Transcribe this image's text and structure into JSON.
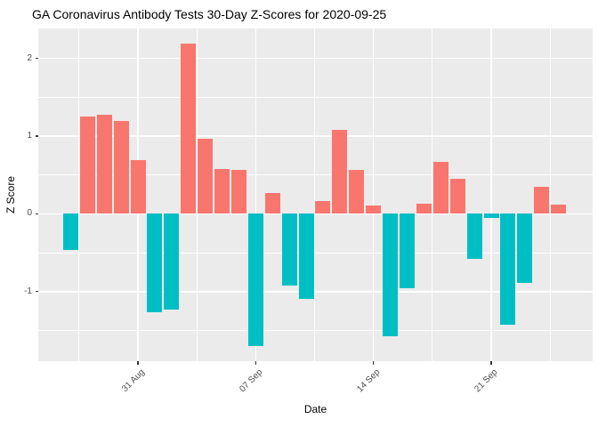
{
  "chart_data": {
    "type": "bar",
    "title": "GA Coronavirus Antibody Tests 30-Day Z-Scores for 2020-09-25",
    "xlabel": "Date",
    "ylabel": "Z Score",
    "dates": [
      "2020-08-27",
      "2020-08-28",
      "2020-08-29",
      "2020-08-30",
      "2020-08-31",
      "2020-09-01",
      "2020-09-02",
      "2020-09-03",
      "2020-09-04",
      "2020-09-05",
      "2020-09-06",
      "2020-09-07",
      "2020-09-08",
      "2020-09-09",
      "2020-09-10",
      "2020-09-11",
      "2020-09-12",
      "2020-09-13",
      "2020-09-14",
      "2020-09-15",
      "2020-09-16",
      "2020-09-17",
      "2020-09-18",
      "2020-09-19",
      "2020-09-20",
      "2020-09-21",
      "2020-09-22",
      "2020-09-23",
      "2020-09-24",
      "2020-09-25"
    ],
    "values": [
      -0.47,
      1.25,
      1.27,
      1.2,
      0.69,
      -1.26,
      -1.23,
      2.19,
      0.97,
      0.58,
      0.56,
      -1.7,
      0.27,
      -0.92,
      -1.09,
      0.17,
      1.08,
      0.57,
      0.11,
      -1.58,
      -0.96,
      0.13,
      0.67,
      0.45,
      -0.58,
      -0.05,
      -1.43,
      -0.89,
      0.35,
      0.12
    ],
    "x_ticks": [
      {
        "label": "31 Aug",
        "day_index": 4
      },
      {
        "label": "07 Sep",
        "day_index": 11
      },
      {
        "label": "14 Sep",
        "day_index": 18
      },
      {
        "label": "21 Sep",
        "day_index": 25
      }
    ],
    "y_ticks": [
      2,
      1,
      0,
      -1
    ],
    "ylim": [
      -1.895,
      2.385
    ],
    "grid": "major+minor white on gray panel",
    "legend": "none",
    "colors": {
      "positive_bar": "#F8766D",
      "negative_bar": "#00BFC4",
      "panel_background": "#EBEBEB",
      "gridline": "#FFFFFF",
      "tick_mark": "#333333",
      "tick_label": "#4D4D4D",
      "axis_title": "#000000",
      "title": "#000000"
    }
  }
}
